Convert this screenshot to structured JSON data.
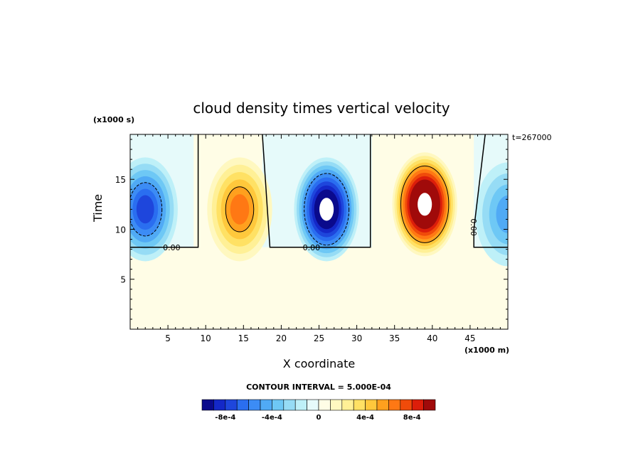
{
  "chart_data": {
    "type": "heatmap",
    "title": "cloud density times vertical velocity",
    "xlabel": "X coordinate",
    "ylabel": "Time",
    "x_scale_label": "(x1000 m)",
    "y_scale_label": "(x1000 s)",
    "time_stamp": "t=267000",
    "xlim": [
      0,
      50
    ],
    "ylim": [
      0,
      19.5
    ],
    "x_ticks": [
      5,
      10,
      15,
      20,
      25,
      30,
      35,
      40,
      45
    ],
    "y_ticks": [
      5,
      10,
      15
    ],
    "contour_interval_label": "CONTOUR INTERVAL = 5.000E-04",
    "contour_labels": [
      "0.00",
      "0.00",
      "0.00"
    ],
    "colorbar": {
      "levels": [
        -0.001,
        -0.0009,
        -0.0008,
        -0.0007,
        -0.0006,
        -0.0005,
        -0.0004,
        -0.0003,
        -0.0002,
        -0.0001,
        0,
        0.0001,
        0.0002,
        0.0003,
        0.0004,
        0.0005,
        0.0006,
        0.0007,
        0.0008,
        0.0009,
        0.001
      ],
      "colors": [
        "#0a0a8c",
        "#1428c8",
        "#1e46dc",
        "#2a6ef0",
        "#3c8cf5",
        "#50aaf5",
        "#6ec8f5",
        "#96dcf5",
        "#bef0f8",
        "#e6fafa",
        "#fffde6",
        "#fff8c0",
        "#fff096",
        "#ffe164",
        "#ffc83c",
        "#ffa01e",
        "#ff7814",
        "#f04b0a",
        "#dc1e0a",
        "#a00a0a"
      ],
      "tick_labels": [
        "-8e-4",
        "-4e-4",
        "0",
        "4e-4",
        "8e-4"
      ],
      "tick_values": [
        -0.0008,
        -0.0004,
        0,
        0.0004,
        0.0008
      ]
    },
    "features": [
      {
        "name": "downdraft-cell-1",
        "x": 2,
        "y": 12,
        "peak": -0.0007
      },
      {
        "name": "updraft-cell-1",
        "x": 14.5,
        "y": 12,
        "peak": 0.00065
      },
      {
        "name": "downdraft-cell-2",
        "x": 26,
        "y": 12,
        "peak": -0.0011
      },
      {
        "name": "updraft-cell-2",
        "x": 39,
        "y": 12.5,
        "peak": 0.0013
      },
      {
        "name": "downdraft-cell-3",
        "x": 50,
        "y": 11.5,
        "peak": -0.0004
      }
    ],
    "grid": false,
    "legend": "bottom"
  }
}
